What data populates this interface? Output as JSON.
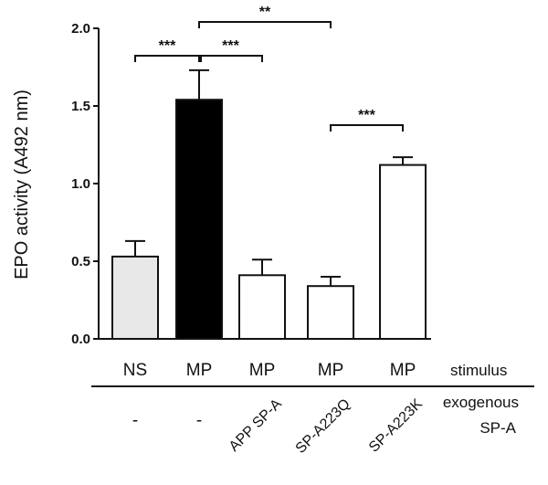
{
  "chart_data": {
    "type": "bar",
    "ylabel": "EPO activity (A492 nm)",
    "ylim": [
      0,
      2.0
    ],
    "yticks": [
      0.0,
      0.5,
      1.0,
      1.5,
      2.0
    ],
    "ytick_labels": [
      "0.0",
      "0.5",
      "1.0",
      "1.5",
      "2.0"
    ],
    "categories": [
      "NS",
      "MP",
      "MP",
      "MP",
      "MP"
    ],
    "values": [
      0.53,
      1.54,
      0.41,
      0.34,
      1.12
    ],
    "errors": [
      0.1,
      0.19,
      0.1,
      0.06,
      0.05
    ],
    "fills": [
      "#e8e8e8",
      "#000000",
      "#ffffff",
      "#ffffff",
      "#ffffff"
    ],
    "stimulus_row_label": "stimulus",
    "exogenous_row_label": [
      "exogenous",
      "SP-A"
    ],
    "exogenous_spa": [
      "-",
      "-",
      "APP SP-A",
      "SP-A223Q",
      "SP-A223K"
    ],
    "significance": [
      {
        "from": 0,
        "to": 1,
        "label": "***"
      },
      {
        "from": 1,
        "to": 2,
        "label": "***"
      },
      {
        "from": 1,
        "to": 3,
        "label": "**"
      },
      {
        "from": 3,
        "to": 4,
        "label": "***"
      }
    ]
  }
}
